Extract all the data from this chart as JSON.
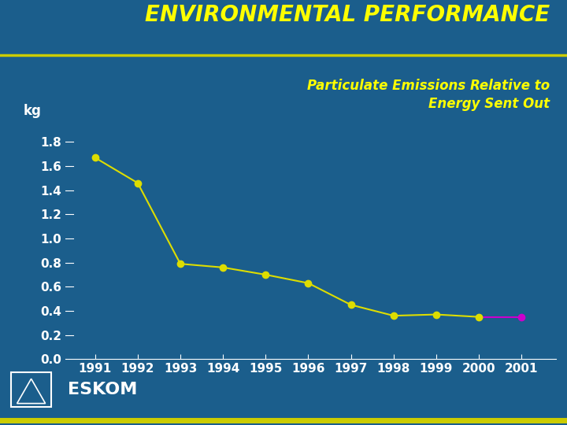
{
  "title": "ENVIRONMENTAL PERFORMANCE",
  "subtitle_line1": "Particulate Emissions Relative to",
  "subtitle_line2": "Energy Sent Out",
  "ylabel": "kg",
  "years": [
    1991,
    1992,
    1993,
    1994,
    1995,
    1996,
    1997,
    1998,
    1999,
    2000,
    2001
  ],
  "values": [
    1.67,
    1.46,
    0.79,
    0.76,
    0.7,
    0.63,
    0.45,
    0.36,
    0.37,
    0.35,
    0.35
  ],
  "line_color_main": "#DDDD00",
  "line_color_last": "#CC00CC",
  "marker_color_main": "#DDDD00",
  "marker_color_last": "#CC00CC",
  "background_color": "#1B5E8C",
  "title_color": "#FFFF00",
  "subtitle_color": "#FFFF00",
  "tick_label_color": "#FFFFFF",
  "ytick_labels": [
    "0.0",
    "0.2",
    "0.4",
    "0.6",
    "0.8",
    "1.0",
    "1.2",
    "1.4",
    "1.6",
    "1.8"
  ],
  "ytick_values": [
    0.0,
    0.2,
    0.4,
    0.6,
    0.8,
    1.0,
    1.2,
    1.4,
    1.6,
    1.8
  ],
  "ylim": [
    0.0,
    1.92
  ],
  "xlim": [
    1990.3,
    2001.8
  ],
  "title_fontsize": 20,
  "subtitle_fontsize": 12,
  "tick_fontsize": 11,
  "ylabel_fontsize": 12,
  "line_width": 1.5,
  "marker_size": 6,
  "separator_color": "#CCCC00",
  "bottom_bar_color": "#CCCC00",
  "eskom_text_color": "#FFFFFF"
}
